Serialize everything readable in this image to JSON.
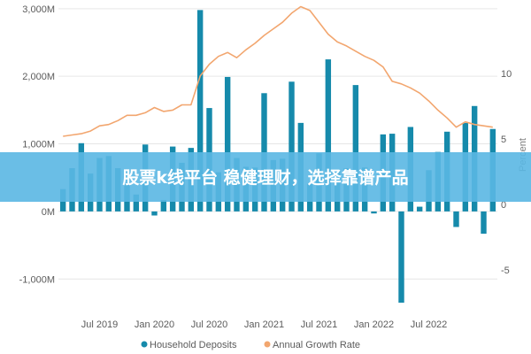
{
  "banner": {
    "text": "股票k线平台 稳健理财，选择靠谱产品"
  },
  "chart_data": {
    "type": "bar",
    "title": "",
    "left_axis": {
      "label": "",
      "ticks": [
        -1000,
        0,
        1000,
        2000,
        3000
      ],
      "tick_labels": [
        "-1,000M",
        "0M",
        "1,000M",
        "2,000M",
        "3,000M"
      ],
      "range": [
        -1350,
        3050
      ]
    },
    "right_axis": {
      "label": "Percent",
      "ticks": [
        -5,
        0,
        5,
        10
      ],
      "tick_labels": [
        "-5",
        "0",
        "5",
        "10"
      ],
      "range": [
        -7.5,
        15.2
      ]
    },
    "x_tick_labels": [
      "Jul 2019",
      "Jan 2020",
      "Jul 2020",
      "Jan 2021",
      "Jul 2021",
      "Jan 2022",
      "Jul 2022"
    ],
    "legend": {
      "position": "bottom",
      "items": [
        "Household Deposits",
        "Annual Growth Rate"
      ]
    },
    "colors": {
      "bars": "#168aab",
      "line": "#f2a66f",
      "banner": "#5ab7e3"
    },
    "series": [
      {
        "name": "Household Deposits",
        "type": "bar",
        "axis": "left",
        "values": [
          330,
          640,
          1010,
          560,
          790,
          820,
          640,
          410,
          250,
          990,
          -60,
          170,
          960,
          720,
          940,
          2980,
          1530,
          580,
          1990,
          790,
          660,
          650,
          1750,
          760,
          780,
          1920,
          1310,
          410,
          860,
          2250,
          600,
          640,
          1870,
          650,
          -30,
          1140,
          1150,
          -1350,
          1250,
          70,
          610,
          880,
          1180,
          -230,
          1310,
          1560,
          -330,
          1220
        ]
      },
      {
        "name": "Annual Growth Rate",
        "type": "line",
        "axis": "right",
        "values": [
          5.2,
          5.3,
          5.4,
          5.6,
          6.0,
          6.1,
          6.4,
          6.8,
          6.8,
          7.0,
          7.4,
          7.1,
          7.2,
          7.6,
          7.6,
          9.8,
          10.7,
          11.3,
          11.6,
          11.2,
          11.8,
          12.3,
          12.9,
          13.4,
          13.9,
          14.6,
          15.1,
          14.8,
          13.9,
          13.0,
          12.4,
          12.1,
          11.7,
          11.3,
          11.0,
          10.5,
          9.4,
          9.2,
          8.9,
          8.5,
          7.9,
          7.2,
          6.6,
          5.9,
          6.3,
          6.1,
          6.0,
          5.9
        ]
      }
    ]
  }
}
